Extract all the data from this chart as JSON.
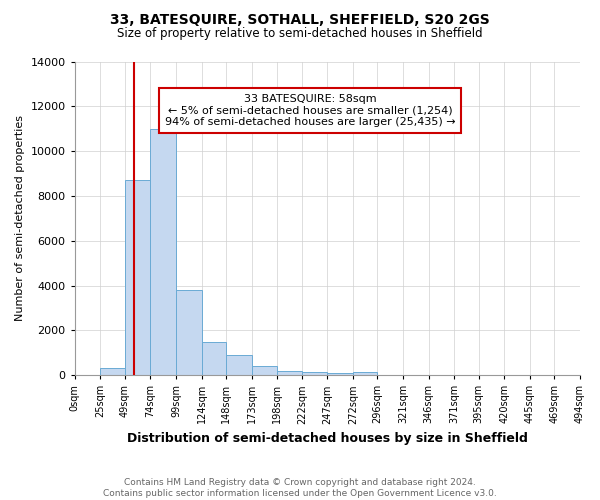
{
  "title": "33, BATESQUIRE, SOTHALL, SHEFFIELD, S20 2GS",
  "subtitle": "Size of property relative to semi-detached houses in Sheffield",
  "xlabel": "Distribution of semi-detached houses by size in Sheffield",
  "ylabel": "Number of semi-detached properties",
  "bin_labels": [
    "0sqm",
    "25sqm",
    "49sqm",
    "74sqm",
    "99sqm",
    "124sqm",
    "148sqm",
    "173sqm",
    "198sqm",
    "222sqm",
    "247sqm",
    "272sqm",
    "296sqm",
    "321sqm",
    "346sqm",
    "371sqm",
    "395sqm",
    "420sqm",
    "445sqm",
    "469sqm",
    "494sqm"
  ],
  "bar_values": [
    0,
    300,
    8700,
    11000,
    3800,
    1500,
    900,
    400,
    200,
    130,
    80,
    130,
    0,
    0,
    0,
    0,
    0,
    0,
    0,
    0
  ],
  "bar_color": "#c5d8f0",
  "bar_edge_color": "#6aaad4",
  "property_line_x": 58,
  "property_line_color": "#cc0000",
  "annotation_line1": "33 BATESQUIRE: 58sqm",
  "annotation_line2": "← 5% of semi-detached houses are smaller (1,254)",
  "annotation_line3": "94% of semi-detached houses are larger (25,435) →",
  "annotation_box_color": "#ffffff",
  "annotation_box_edge": "#cc0000",
  "ylim": [
    0,
    14000
  ],
  "xlim_min": 0,
  "xlim_max": 494,
  "bin_edges": [
    0,
    25,
    49,
    74,
    99,
    124,
    148,
    173,
    198,
    222,
    247,
    272,
    296,
    321,
    346,
    371,
    395,
    420,
    445,
    469,
    494
  ],
  "footer_text": "Contains HM Land Registry data © Crown copyright and database right 2024.\nContains public sector information licensed under the Open Government Licence v3.0.",
  "background_color": "#ffffff",
  "grid_color": "#d0d0d0"
}
